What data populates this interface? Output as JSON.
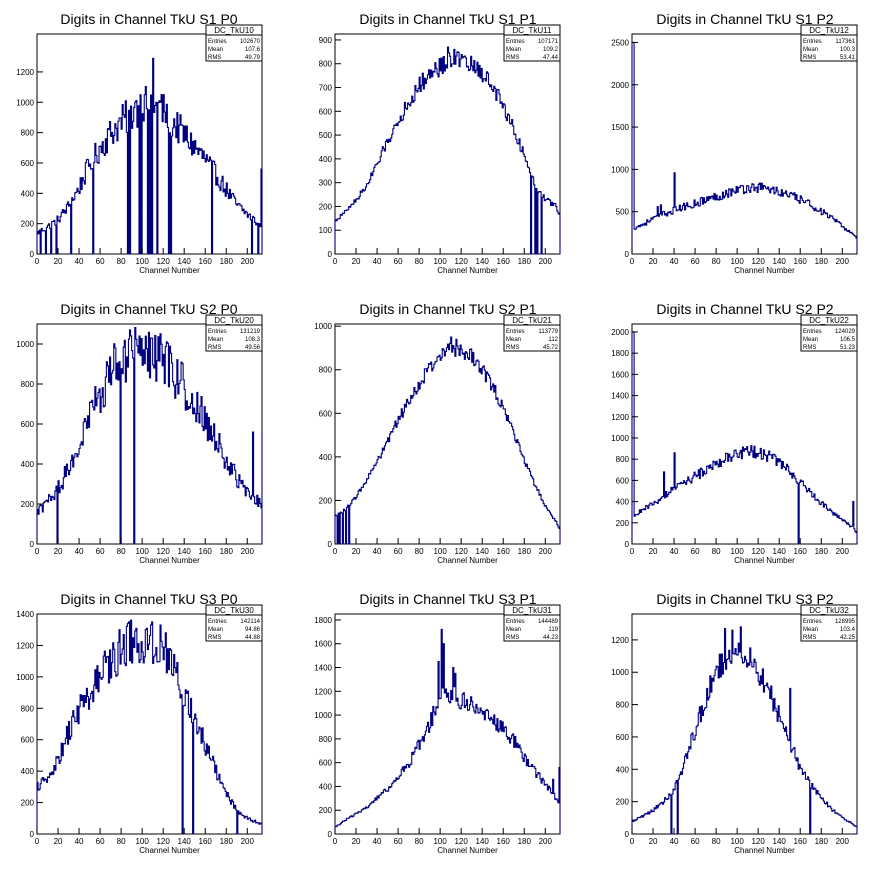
{
  "panel_titles": [
    "Digits in Channel TkU S1 P0",
    "Digits in Channel TkU S1 P1",
    "Digits in Channel TkU S1 P2",
    "Digits in Channel TkU S2 P0",
    "Digits in Channel TkU S2 P1",
    "Digits in Channel TkU S2 P2",
    "Digits in Channel TkU S3 P0",
    "Digits in Channel TkU S3 P1",
    "Digits in Channel TkU S3 P2"
  ],
  "stats_labels": {
    "entries": "Entries",
    "mean": "Mean",
    "rms": "RMS"
  },
  "colors": {
    "line": "#000080",
    "axis": "#000000",
    "background": "#ffffff"
  },
  "chart_data": [
    {
      "type": "histogram",
      "title": "Digits in Channel TkU S1 P0",
      "name": "DC_TkU10",
      "xlabel": "Channel Number",
      "ylabel": "",
      "xlim": [
        0,
        214
      ],
      "ylim": [
        0,
        1450
      ],
      "yticks": [
        0,
        200,
        400,
        600,
        800,
        1000,
        1200
      ],
      "xticks": [
        0,
        20,
        40,
        60,
        80,
        100,
        120,
        140,
        160,
        180,
        200
      ],
      "stats": {
        "entries": "102670",
        "mean": "107.6",
        "rms": "49.79"
      },
      "profile": {
        "x": [
          0,
          10,
          20,
          30,
          40,
          50,
          60,
          70,
          80,
          90,
          100,
          110,
          120,
          130,
          140,
          150,
          160,
          170,
          180,
          190,
          200,
          210,
          214
        ],
        "y": [
          140,
          180,
          230,
          320,
          440,
          600,
          700,
          800,
          870,
          930,
          990,
          1000,
          940,
          860,
          780,
          700,
          620,
          520,
          420,
          320,
          260,
          200,
          180
        ]
      },
      "noise": 0.13,
      "dips": [
        3,
        8,
        13,
        18,
        32,
        53,
        86,
        88,
        97,
        99,
        105,
        107,
        109,
        114,
        125,
        127,
        166,
        204,
        210
      ],
      "spikes": [
        [
          110,
          1290
        ],
        [
          102,
          1050
        ],
        [
          93,
          1000
        ],
        [
          117,
          1000
        ],
        [
          213,
          560
        ],
        [
          215,
          550
        ]
      ]
    },
    {
      "type": "histogram",
      "title": "Digits in Channel TkU S1 P1",
      "name": "DC_TkU11",
      "xlabel": "Channel Number",
      "ylabel": "",
      "xlim": [
        0,
        214
      ],
      "ylim": [
        0,
        925
      ],
      "yticks": [
        0,
        100,
        200,
        300,
        400,
        500,
        600,
        700,
        800,
        900
      ],
      "xticks": [
        0,
        20,
        40,
        60,
        80,
        100,
        120,
        140,
        160,
        180,
        200
      ],
      "stats": {
        "entries": "107171",
        "mean": "109.2",
        "rms": "47.44"
      },
      "profile": {
        "x": [
          0,
          10,
          20,
          30,
          40,
          50,
          60,
          70,
          80,
          90,
          100,
          110,
          120,
          130,
          140,
          150,
          160,
          170,
          180,
          190,
          200,
          210,
          214
        ],
        "y": [
          140,
          180,
          230,
          290,
          380,
          480,
          560,
          640,
          710,
          760,
          790,
          820,
          810,
          790,
          760,
          700,
          620,
          520,
          410,
          290,
          230,
          200,
          160
        ]
      },
      "noise": 0.05,
      "dips": [
        186,
        190,
        192,
        196
      ],
      "spikes": [
        [
          107,
          870
        ],
        [
          113,
          860
        ]
      ]
    },
    {
      "type": "histogram",
      "title": "Digits in Channel TkU S1 P2",
      "name": "DC_TkU12",
      "xlabel": "Channel Number",
      "ylabel": "",
      "xlim": [
        0,
        214
      ],
      "ylim": [
        0,
        2600
      ],
      "yticks": [
        0,
        500,
        1000,
        1500,
        2000,
        2500
      ],
      "xticks": [
        0,
        20,
        40,
        60,
        80,
        100,
        120,
        140,
        160,
        180,
        200
      ],
      "stats": {
        "entries": "117361",
        "mean": "100.3",
        "rms": "53.41"
      },
      "profile": {
        "x": [
          0,
          10,
          20,
          30,
          40,
          50,
          60,
          70,
          80,
          90,
          100,
          110,
          120,
          130,
          140,
          150,
          160,
          170,
          180,
          190,
          200,
          210,
          214
        ],
        "y": [
          300,
          350,
          420,
          470,
          520,
          560,
          600,
          640,
          680,
          720,
          760,
          780,
          790,
          770,
          730,
          690,
          640,
          580,
          500,
          420,
          320,
          240,
          160
        ]
      },
      "noise": 0.08,
      "dips": [],
      "spikes": [
        [
          0,
          2500
        ],
        [
          1,
          2500
        ],
        [
          40,
          960
        ],
        [
          24,
          560
        ],
        [
          27,
          580
        ]
      ]
    },
    {
      "type": "histogram",
      "title": "Digits in Channel TkU S2 P0",
      "name": "DC_TkU20",
      "xlabel": "Channel Number",
      "ylabel": "",
      "xlim": [
        0,
        214
      ],
      "ylim": [
        0,
        1100
      ],
      "yticks": [
        0,
        200,
        400,
        600,
        800,
        1000
      ],
      "xticks": [
        0,
        20,
        40,
        60,
        80,
        100,
        120,
        140,
        160,
        180,
        200
      ],
      "stats": {
        "entries": "131219",
        "mean": "108.3",
        "rms": "49.56"
      },
      "profile": {
        "x": [
          0,
          10,
          20,
          30,
          40,
          50,
          60,
          70,
          80,
          90,
          100,
          110,
          120,
          130,
          140,
          150,
          160,
          170,
          180,
          190,
          200,
          210,
          214
        ],
        "y": [
          160,
          210,
          280,
          380,
          500,
          640,
          760,
          860,
          920,
          950,
          960,
          950,
          910,
          850,
          780,
          700,
          620,
          520,
          420,
          320,
          260,
          210,
          190
        ]
      },
      "noise": 0.14,
      "dips": [
        19,
        79,
        92
      ],
      "spikes": [
        [
          97,
          1040
        ],
        [
          108,
          1030
        ],
        [
          205,
          560
        ],
        [
          214,
          560
        ]
      ]
    },
    {
      "type": "histogram",
      "title": "Digits in Channel TkU S2 P1",
      "name": "DC_TkU21",
      "xlabel": "Channel Number",
      "ylabel": "",
      "xlim": [
        0,
        214
      ],
      "ylim": [
        0,
        1010
      ],
      "yticks": [
        0,
        200,
        400,
        600,
        800,
        1000
      ],
      "xticks": [
        0,
        20,
        40,
        60,
        80,
        100,
        120,
        140,
        160,
        180,
        200
      ],
      "stats": {
        "entries": "113779",
        "mean": "112",
        "rms": "45.72"
      },
      "profile": {
        "x": [
          0,
          10,
          20,
          30,
          40,
          50,
          60,
          70,
          80,
          90,
          100,
          110,
          120,
          130,
          140,
          150,
          160,
          170,
          180,
          190,
          200,
          210,
          214
        ],
        "y": [
          130,
          160,
          220,
          300,
          380,
          480,
          570,
          660,
          740,
          810,
          860,
          900,
          890,
          860,
          800,
          720,
          620,
          500,
          380,
          270,
          170,
          100,
          60
        ]
      },
      "noise": 0.04,
      "dips": [
        2,
        4,
        7,
        10,
        13
      ],
      "spikes": [
        [
          110,
          950
        ],
        [
          115,
          940
        ]
      ]
    },
    {
      "type": "histogram",
      "title": "Digits in Channel TkU S2 P2",
      "name": "DC_TkU22",
      "xlabel": "Channel Number",
      "ylabel": "",
      "xlim": [
        0,
        214
      ],
      "ylim": [
        0,
        2075
      ],
      "yticks": [
        0,
        200,
        400,
        600,
        800,
        1000,
        1200,
        1400,
        1600,
        1800,
        2000
      ],
      "xticks": [
        0,
        20,
        40,
        60,
        80,
        100,
        120,
        140,
        160,
        180,
        200
      ],
      "stats": {
        "entries": "124029",
        "mean": "106.5",
        "rms": "51.23"
      },
      "profile": {
        "x": [
          0,
          10,
          20,
          30,
          40,
          50,
          60,
          70,
          80,
          90,
          100,
          110,
          120,
          130,
          140,
          150,
          160,
          170,
          180,
          190,
          200,
          210,
          214
        ],
        "y": [
          250,
          330,
          380,
          450,
          520,
          580,
          640,
          700,
          760,
          810,
          850,
          870,
          860,
          820,
          760,
          680,
          580,
          480,
          380,
          300,
          230,
          150,
          100
        ]
      },
      "noise": 0.07,
      "dips": [
        158
      ],
      "spikes": [
        [
          0,
          2000
        ],
        [
          1,
          2000
        ],
        [
          40,
          860
        ],
        [
          30,
          680
        ],
        [
          210,
          400
        ]
      ]
    },
    {
      "type": "histogram",
      "title": "Digits in Channel TkU S3 P0",
      "name": "DC_TkU30",
      "xlabel": "Channel Number",
      "ylabel": "",
      "xlim": [
        0,
        214
      ],
      "ylim": [
        0,
        1400
      ],
      "yticks": [
        0,
        200,
        400,
        600,
        800,
        1000,
        1200,
        1400
      ],
      "xticks": [
        0,
        20,
        40,
        60,
        80,
        100,
        120,
        140,
        160,
        180,
        200
      ],
      "stats": {
        "entries": "142114",
        "mean": "94.86",
        "rms": "44.88"
      },
      "profile": {
        "x": [
          0,
          10,
          20,
          30,
          40,
          50,
          60,
          70,
          80,
          90,
          100,
          110,
          120,
          130,
          140,
          150,
          160,
          170,
          180,
          190,
          200,
          210,
          214
        ],
        "y": [
          300,
          380,
          480,
          650,
          800,
          900,
          1000,
          1100,
          1180,
          1220,
          1230,
          1210,
          1150,
          1050,
          900,
          720,
          560,
          400,
          250,
          150,
          100,
          70,
          60
        ]
      },
      "noise": 0.12,
      "dips": [
        78,
        103,
        138,
        148,
        190
      ],
      "spikes": [
        [
          78,
          1300
        ],
        [
          103,
          1300
        ],
        [
          117,
          1330
        ],
        [
          122,
          1280
        ]
      ]
    },
    {
      "type": "histogram",
      "title": "Digits in Channel TkU S3 P1",
      "name": "DC_TkU31",
      "xlabel": "Channel Number",
      "ylabel": "",
      "xlim": [
        0,
        214
      ],
      "ylim": [
        0,
        1850
      ],
      "yticks": [
        0,
        200,
        400,
        600,
        800,
        1000,
        1200,
        1400,
        1600,
        1800
      ],
      "xticks": [
        0,
        20,
        40,
        60,
        80,
        100,
        120,
        140,
        160,
        180,
        200
      ],
      "stats": {
        "entries": "144489",
        "mean": "119",
        "rms": "44.23"
      },
      "profile": {
        "x": [
          0,
          10,
          20,
          30,
          40,
          50,
          60,
          70,
          80,
          90,
          100,
          110,
          120,
          130,
          140,
          150,
          160,
          170,
          180,
          190,
          200,
          210,
          214
        ],
        "y": [
          60,
          120,
          170,
          230,
          300,
          380,
          480,
          600,
          760,
          930,
          1180,
          1180,
          1120,
          1080,
          1030,
          960,
          880,
          780,
          640,
          520,
          420,
          300,
          220
        ]
      },
      "noise": 0.07,
      "dips": [],
      "spikes": [
        [
          101,
          1720
        ],
        [
          103,
          1600
        ],
        [
          98,
          1450
        ],
        [
          112,
          1400
        ],
        [
          114,
          1350
        ],
        [
          207,
          460
        ],
        [
          213,
          560
        ]
      ]
    },
    {
      "type": "histogram",
      "title": "Digits in Channel TkU S3 P2",
      "name": "DC_TkU32",
      "xlabel": "Channel Number",
      "ylabel": "",
      "xlim": [
        0,
        214
      ],
      "ylim": [
        0,
        1360
      ],
      "yticks": [
        0,
        200,
        400,
        600,
        800,
        1000,
        1200
      ],
      "xticks": [
        0,
        20,
        40,
        60,
        80,
        100,
        120,
        140,
        160,
        180,
        200
      ],
      "stats": {
        "entries": "128995",
        "mean": "103.4",
        "rms": "42.25"
      },
      "profile": {
        "x": [
          0,
          10,
          20,
          30,
          40,
          50,
          60,
          70,
          80,
          90,
          100,
          110,
          120,
          130,
          140,
          150,
          160,
          170,
          180,
          190,
          200,
          210,
          214
        ],
        "y": [
          80,
          110,
          150,
          200,
          280,
          450,
          650,
          850,
          1000,
          1100,
          1150,
          1100,
          1000,
          880,
          720,
          560,
          400,
          300,
          220,
          150,
          100,
          60,
          40
        ]
      },
      "noise": 0.08,
      "dips": [
        37,
        43,
        169
      ],
      "spikes": [
        [
          88,
          1270
        ],
        [
          103,
          1280
        ],
        [
          95,
          1260
        ],
        [
          150,
          900
        ]
      ]
    }
  ]
}
